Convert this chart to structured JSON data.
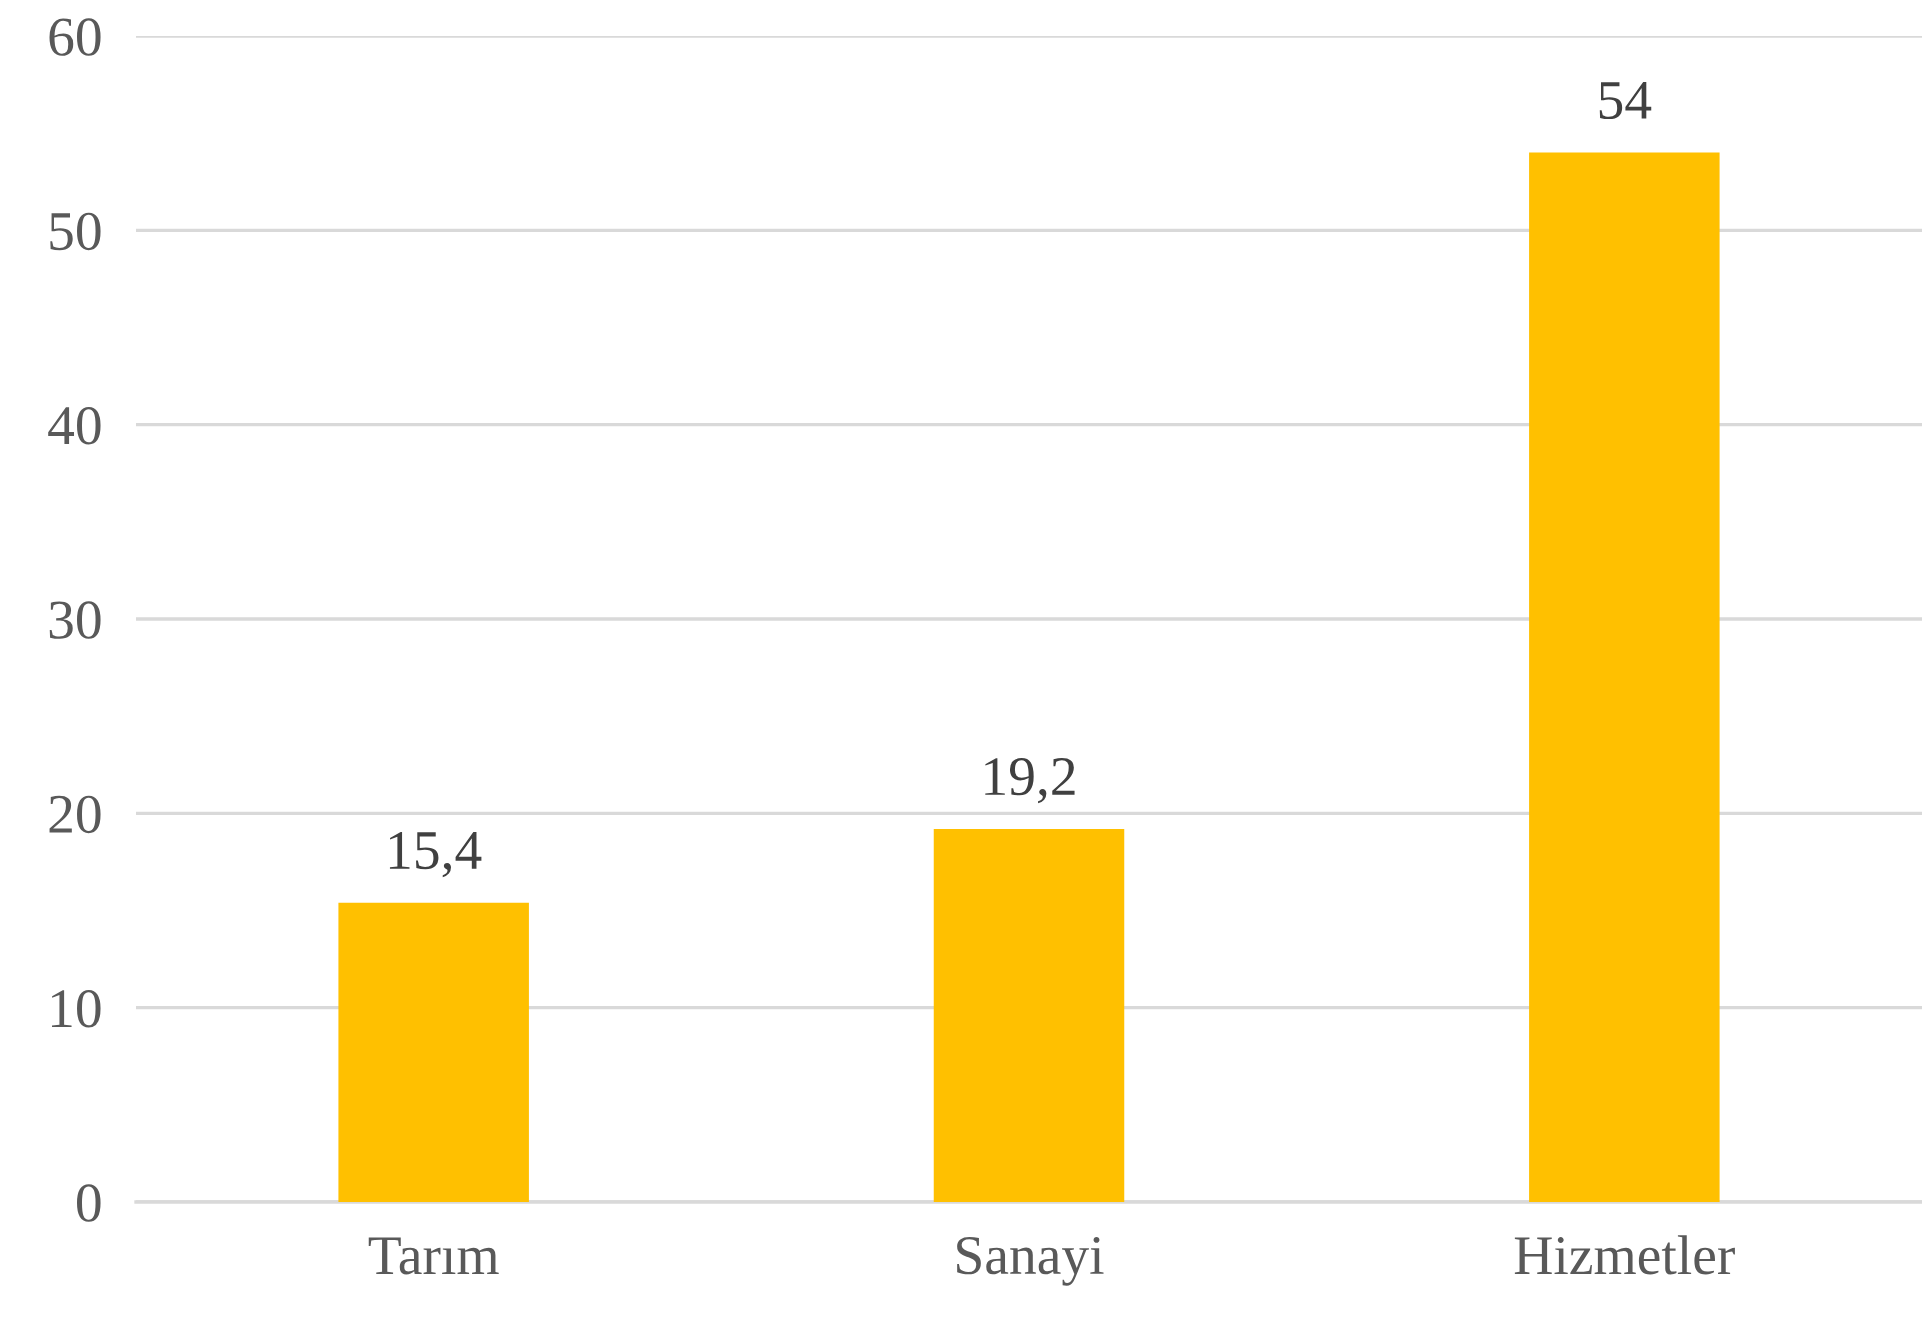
{
  "chart_data": {
    "type": "bar",
    "categories": [
      "Tarım",
      "Sanayi",
      "Hizmetler"
    ],
    "series": [
      {
        "color": "#ffc000",
        "values": [
          15.4,
          19.2,
          54
        ],
        "value_labels": [
          "15,4",
          "19,2",
          "54"
        ]
      }
    ],
    "ylim": [
      0,
      60
    ],
    "yticks": [
      0,
      10,
      20,
      30,
      40,
      50,
      60
    ],
    "grid": "y"
  }
}
